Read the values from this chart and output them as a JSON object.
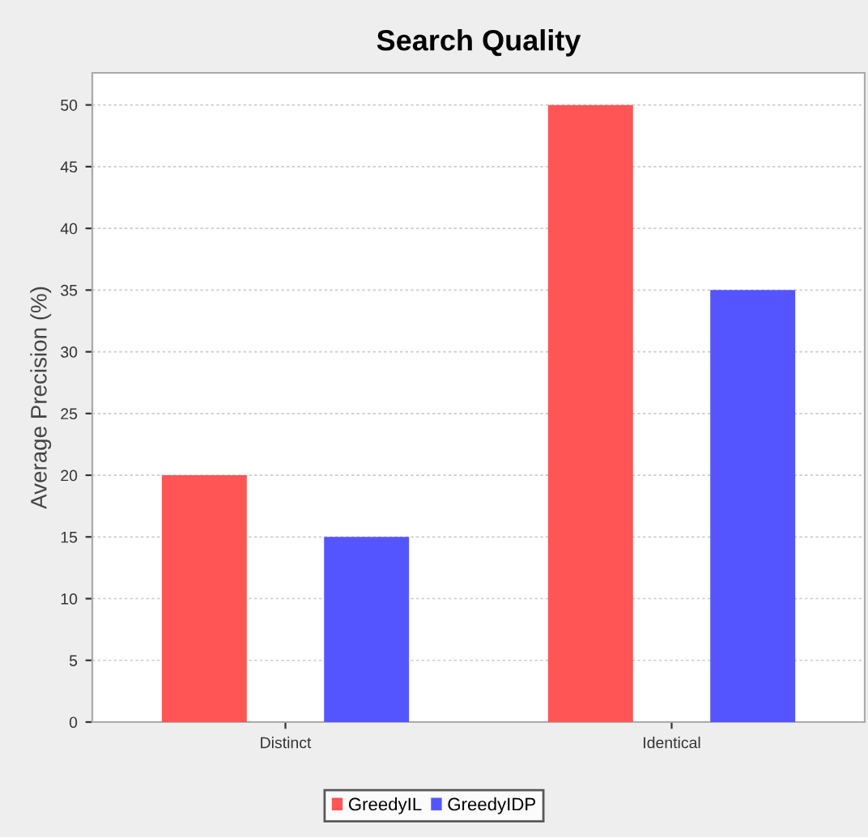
{
  "chart_data": {
    "type": "bar",
    "title": "Search Quality",
    "ylabel": "Average Precision (%)",
    "categories": [
      "Distinct",
      "Identical"
    ],
    "series": [
      {
        "name": "GreedyIL",
        "color": "#ff5555",
        "values": [
          20,
          50
        ]
      },
      {
        "name": "GreedyIDP",
        "color": "#5555ff",
        "values": [
          15,
          35
        ]
      }
    ],
    "ylim": [
      0,
      52.6
    ],
    "yticks": [
      0,
      5,
      10,
      15,
      20,
      25,
      30,
      35,
      40,
      45,
      50
    ],
    "grid": "y",
    "legend": "bottom"
  }
}
